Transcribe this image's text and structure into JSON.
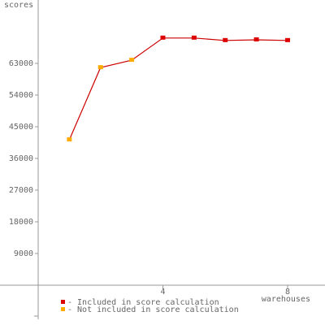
{
  "chart_data": {
    "type": "line",
    "y_label": "scores",
    "x_label": "warehouses",
    "x": [
      1,
      2,
      3,
      4,
      5,
      6,
      7,
      8
    ],
    "values": [
      41300,
      61800,
      63900,
      70200,
      70200,
      69500,
      69700,
      69500
    ],
    "line_color": "#cc0000",
    "marker_group": [
      1,
      1,
      1,
      0,
      0,
      0,
      0,
      0
    ],
    "legend": [
      {
        "label": "- Included in score calculation",
        "color": "#dd0000"
      },
      {
        "label": "- Not included in score calculation",
        "color": "#ffaa00"
      }
    ],
    "xlim": [
      0,
      9.2
    ],
    "ylim": [
      -9000,
      81000
    ],
    "xticks": [
      4,
      8
    ],
    "yticks": [
      9000,
      18000,
      27000,
      36000,
      45000,
      54000,
      63000
    ]
  }
}
